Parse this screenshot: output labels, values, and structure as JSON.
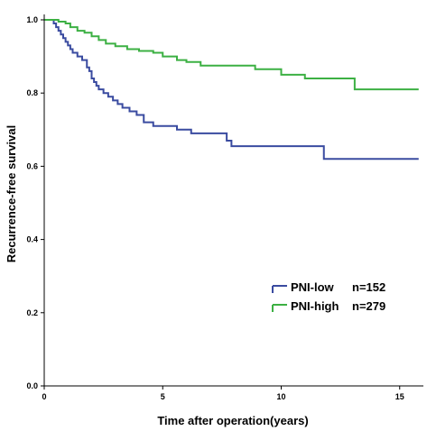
{
  "chart_data": {
    "type": "line",
    "title": "",
    "xlabel": "Time after operation(years)",
    "ylabel": "Recurrence-free survival",
    "xlim": [
      0,
      16
    ],
    "ylim": [
      0,
      1.0
    ],
    "x_ticks": [
      0,
      5,
      10,
      15
    ],
    "x_tick_labels": [
      "0",
      "5",
      "10",
      "15"
    ],
    "y_ticks": [
      0,
      0.2,
      0.4,
      0.6,
      0.8,
      1.0
    ],
    "y_tick_labels": [
      "0.0",
      "0.2",
      "0.4",
      "0.6",
      "0.8",
      "1.0"
    ],
    "grid": false,
    "legend_position": "bottom-right",
    "series": [
      {
        "name": "PNI-low",
        "count_label": "n=152",
        "color": "#3a4ba0",
        "step": true,
        "points": [
          [
            0,
            1.0
          ],
          [
            0.4,
            0.99
          ],
          [
            0.5,
            0.98
          ],
          [
            0.6,
            0.97
          ],
          [
            0.7,
            0.96
          ],
          [
            0.8,
            0.95
          ],
          [
            0.9,
            0.94
          ],
          [
            1.0,
            0.93
          ],
          [
            1.1,
            0.92
          ],
          [
            1.2,
            0.91
          ],
          [
            1.4,
            0.9
          ],
          [
            1.6,
            0.89
          ],
          [
            1.8,
            0.87
          ],
          [
            1.9,
            0.86
          ],
          [
            2.0,
            0.84
          ],
          [
            2.1,
            0.83
          ],
          [
            2.2,
            0.82
          ],
          [
            2.3,
            0.81
          ],
          [
            2.5,
            0.8
          ],
          [
            2.7,
            0.79
          ],
          [
            2.9,
            0.78
          ],
          [
            3.1,
            0.77
          ],
          [
            3.3,
            0.76
          ],
          [
            3.6,
            0.75
          ],
          [
            3.9,
            0.74
          ],
          [
            4.2,
            0.72
          ],
          [
            4.6,
            0.71
          ],
          [
            5.6,
            0.7
          ],
          [
            6.2,
            0.69
          ],
          [
            7.7,
            0.67
          ],
          [
            7.9,
            0.655
          ],
          [
            11.8,
            0.62
          ],
          [
            15.8,
            0.62
          ]
        ]
      },
      {
        "name": "PNI-high",
        "count_label": "n=279",
        "color": "#3cb043",
        "step": true,
        "points": [
          [
            0,
            1.0
          ],
          [
            0.6,
            0.995
          ],
          [
            0.9,
            0.99
          ],
          [
            1.1,
            0.98
          ],
          [
            1.4,
            0.97
          ],
          [
            1.7,
            0.965
          ],
          [
            2.0,
            0.955
          ],
          [
            2.3,
            0.945
          ],
          [
            2.6,
            0.935
          ],
          [
            3.0,
            0.928
          ],
          [
            3.5,
            0.92
          ],
          [
            4.0,
            0.915
          ],
          [
            4.6,
            0.91
          ],
          [
            5.0,
            0.9
          ],
          [
            5.6,
            0.89
          ],
          [
            6.0,
            0.885
          ],
          [
            6.6,
            0.875
          ],
          [
            8.9,
            0.865
          ],
          [
            10.0,
            0.85
          ],
          [
            11.0,
            0.84
          ],
          [
            13.1,
            0.81
          ],
          [
            15.8,
            0.81
          ]
        ]
      }
    ]
  }
}
